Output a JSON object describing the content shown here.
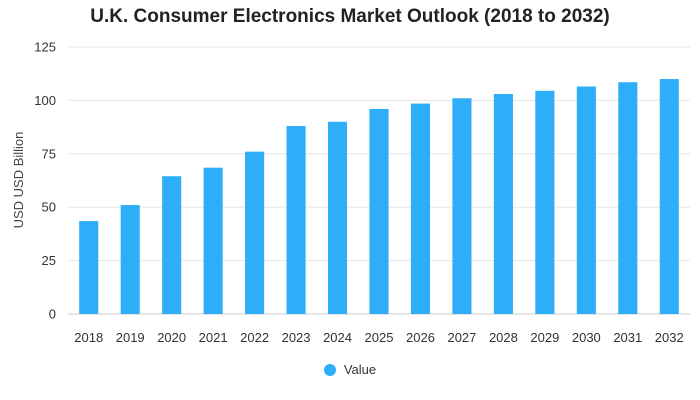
{
  "chart_data": {
    "type": "bar",
    "title": "U.K. Consumer Electronics Market Outlook (2018 to 2032)",
    "xlabel": "",
    "ylabel": "USD USD Billion",
    "categories": [
      "2018",
      "2019",
      "2020",
      "2021",
      "2022",
      "2023",
      "2024",
      "2025",
      "2026",
      "2027",
      "2028",
      "2029",
      "2030",
      "2031",
      "2032"
    ],
    "series": [
      {
        "name": "Value",
        "values": [
          43.5,
          51,
          64.5,
          68.5,
          76,
          88,
          90,
          96,
          98.5,
          101,
          103,
          104.5,
          106.5,
          108.5,
          110
        ]
      }
    ],
    "ylim": [
      0,
      125
    ],
    "yticks": [
      0,
      25,
      50,
      75,
      100,
      125
    ],
    "grid": true,
    "legend_position": "bottom",
    "colors": {
      "bar": "#2EADF8",
      "grid": "#e6e6e6",
      "axis": "#cccccc"
    }
  }
}
